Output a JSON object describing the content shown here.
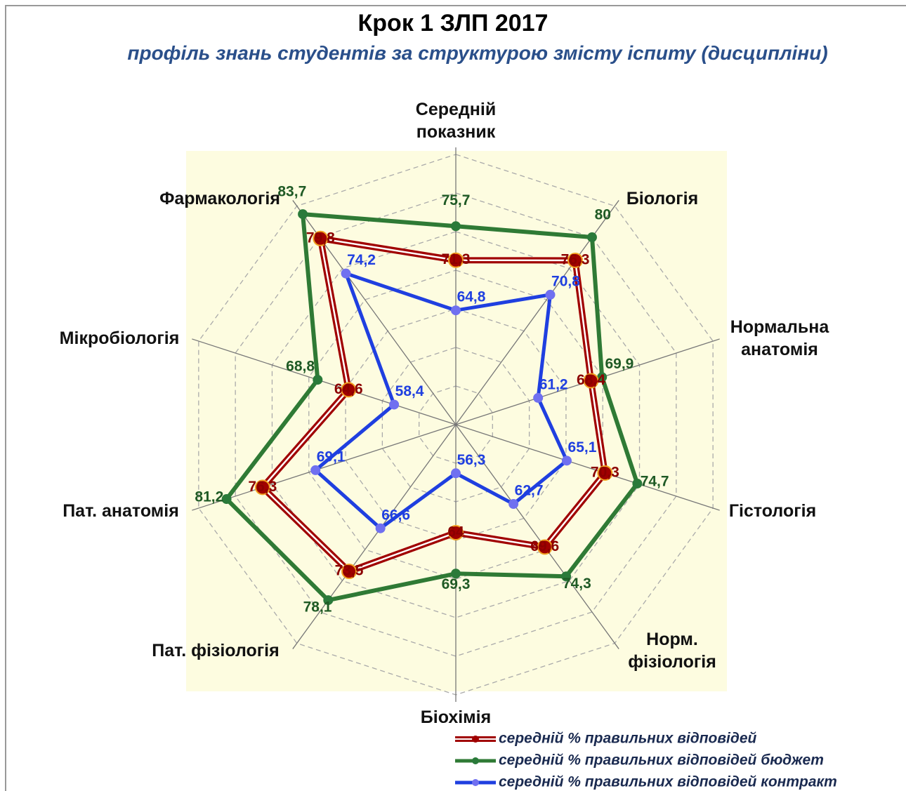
{
  "chart_data": {
    "type": "radar",
    "title": "Крок 1 ЗЛП 2017",
    "subtitle": "профіль  знань студентів за структурою змісту іспиту (дисципліни)",
    "categories": [
      "Середній показник",
      "Біологія",
      "Нормальна анатомія",
      "Гістологія",
      "Норм. фізіологія",
      "Біохімія",
      "Пат. фізіологія",
      "Пат. анатомія",
      "Мікробіологія",
      "Фармакологія"
    ],
    "ylim": [
      50,
      85
    ],
    "yticks": [
      55,
      60,
      65,
      70,
      75,
      80,
      85
    ],
    "grid": true,
    "series": [
      {
        "name": "середній % правильних відповідей",
        "color": "#a00000",
        "values": [
          71.3,
          76.3,
          68.4,
          70.3,
          69.6,
          64,
          73.5,
          76.3,
          64.6,
          79.8
        ],
        "value_labels": [
          "71,3",
          "76,3",
          "68,4",
          "70,3",
          "69,6",
          "64",
          "73,5",
          "76,3",
          "64,6",
          "79,8"
        ]
      },
      {
        "name": "середній % правильних відповідей бюджет",
        "color": "#2f7a35",
        "values": [
          75.7,
          80,
          69.9,
          74.7,
          74.3,
          69.3,
          78.1,
          81.2,
          68.8,
          83.7
        ],
        "value_labels": [
          "75,7",
          "80",
          "69,9",
          "74,7",
          "74,3",
          "69,3",
          "78,1",
          "81,2",
          "68,8",
          "83,7"
        ]
      },
      {
        "name": "середній % правильних відповідей контракт",
        "color": "#1f3fe0",
        "values": [
          64.8,
          70.8,
          61.2,
          65.1,
          62.7,
          56.3,
          66.6,
          69.1,
          58.4,
          74.2
        ],
        "value_labels": [
          "64,8",
          "70,8",
          "61,2",
          "65,1",
          "62,7",
          "56,3",
          "66,6",
          "69,1",
          "58,4",
          "74,2"
        ]
      }
    ],
    "legend": "bottom-right"
  }
}
